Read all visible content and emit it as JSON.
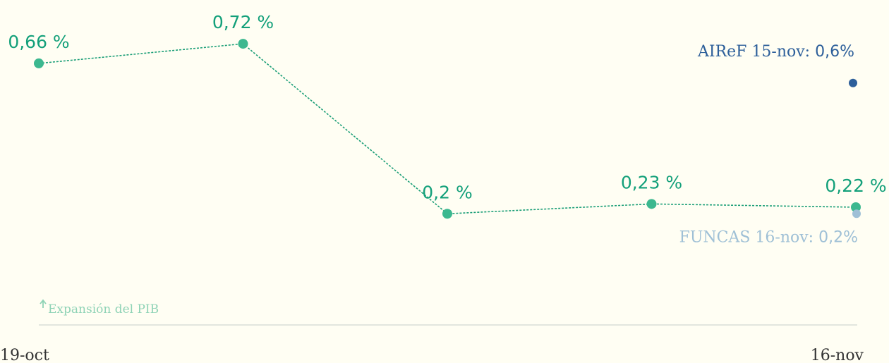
{
  "chart_data": {
    "type": "line",
    "categories": [
      "19-oct",
      null,
      null,
      null,
      "16-nov"
    ],
    "values": [
      0.66,
      0.72,
      0.2,
      0.23,
      0.22
    ],
    "value_labels": [
      "0,66 %",
      "0,72 %",
      "0,2 %",
      "0,23 %",
      "0,22 %"
    ],
    "color": "#3cb88f",
    "ylim": [
      0,
      0.8
    ],
    "y_label": "Expansión del PIB",
    "annotations": [
      {
        "text": "AIReF 15-nov:",
        "value": 0.6,
        "value_label": "0,6%",
        "color": "#2d5f9a"
      },
      {
        "text": "FUNCAS 16-nov:",
        "value": 0.2,
        "value_label": "0,2%",
        "color": "#9fc0d6"
      }
    ]
  }
}
